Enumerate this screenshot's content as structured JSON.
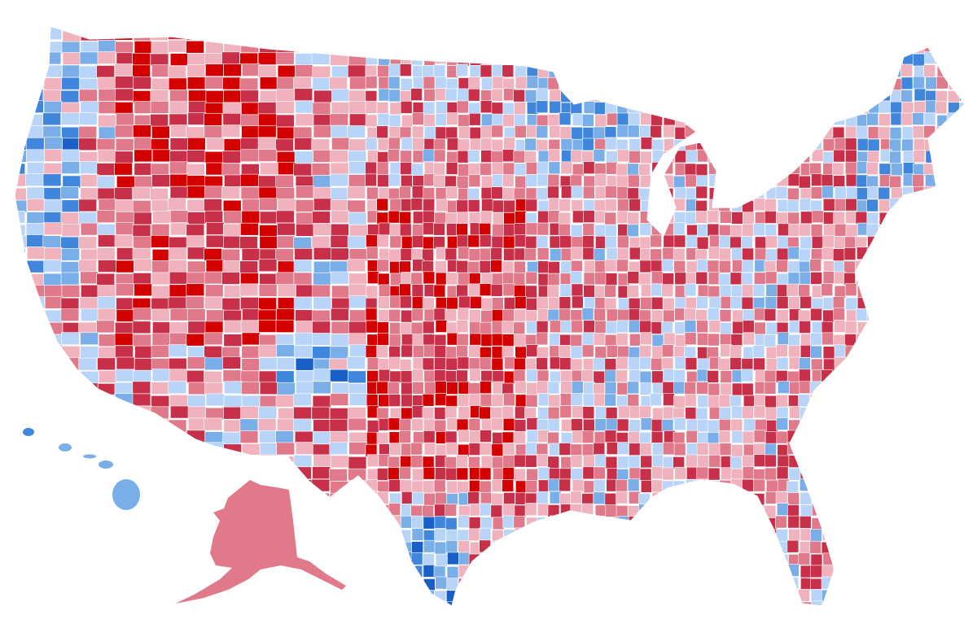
{
  "map": {
    "type": "us-county-choropleth",
    "palette": {
      "strong_red": "#d40000",
      "red": "#c8304a",
      "lean_red": "#e07a8b",
      "light_red": "#f0b3be",
      "light_blue": "#b8d4f8",
      "lean_blue": "#7aaee8",
      "blue": "#3f86dc",
      "strong_blue": "#1a5fc8"
    },
    "alaska_color": "#e07a8b",
    "hawaii_colors": [
      "#3f86dc",
      "#7aaee8"
    ]
  }
}
